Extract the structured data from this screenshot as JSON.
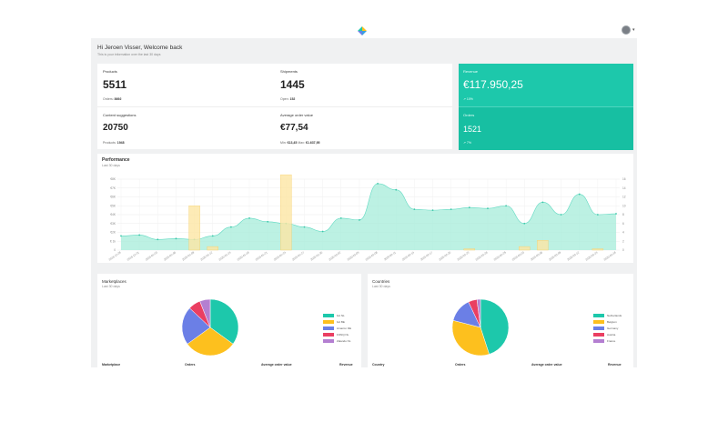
{
  "header": {
    "logo_icon": "app-logo-icon",
    "avatar_icon": "user-avatar-icon"
  },
  "greeting": {
    "title": "Hi Jeroen Visser, Welcome back",
    "subtitle": "This is your information over the last 30 days"
  },
  "stats": {
    "products": {
      "label": "Products",
      "value": "5511",
      "sub_label": "Orders:",
      "sub_value": "8692"
    },
    "shipments": {
      "label": "Shipments",
      "value": "1445",
      "sub_label": "Open:",
      "sub_value": "152"
    },
    "content": {
      "label": "Content suggestions",
      "value": "20750",
      "sub_label": "Products:",
      "sub_value": "1948"
    },
    "aov": {
      "label": "Average order value",
      "value": "€77,54",
      "sub_min_label": "Min:",
      "sub_min_value": "€13,45",
      "sub_max_label": "Max:",
      "sub_max_value": "€1.637,95"
    }
  },
  "revenue": {
    "label": "Revenue",
    "value": "€117.950,25",
    "change": "↗ 10%"
  },
  "orders": {
    "label": "Orders",
    "value": "1521",
    "change": "↗ 7%"
  },
  "performance": {
    "title": "Performance",
    "subtitle": "Last 30 days",
    "chart_data": {
      "type": "area",
      "left_axis_ticks": [
        "0",
        "€ 1k",
        "€2K",
        "€3K",
        "€4K",
        "€5K",
        "€6K",
        "€7K",
        "€8K"
      ],
      "right_axis_ticks": [
        "0",
        "2",
        "4",
        "6",
        "8",
        "10",
        "12",
        "14",
        "16"
      ],
      "x": [
        "2019-12-28",
        "2019-12-31",
        "2020-01-03",
        "2020-01-06",
        "2020-01-09",
        "2020-01-12",
        "2020-01-15",
        "2020-01-18",
        "2020-01-21",
        "2020-01-24",
        "2020-01-27",
        "2020-01-30",
        "2020-02-02",
        "2020-02-05",
        "2020-02-08",
        "2020-02-11",
        "2020-02-14",
        "2020-02-17",
        "2020-02-20",
        "2020-02-23",
        "2020-02-26",
        "2020-02-29",
        "2020-03-03",
        "2020-03-06",
        "2020-03-09",
        "2020-03-12",
        "2020-03-15",
        "2020-03-18"
      ],
      "series": [
        {
          "axis": "left",
          "color": "#a6ecd9",
          "values": [
            1.6,
            1.7,
            1.2,
            1.3,
            1.2,
            1.6,
            2.6,
            3.6,
            3.2,
            3.0,
            2.6,
            2.1,
            3.6,
            3.4,
            7.5,
            6.8,
            4.6,
            4.5,
            4.6,
            4.8,
            4.7,
            5.0,
            3.0,
            5.4,
            4.0,
            6.3,
            4.0,
            4.1
          ]
        },
        {
          "axis": "right",
          "color": "#fde6a4",
          "values": [
            0,
            0,
            0,
            0,
            10,
            0.8,
            0,
            0,
            0,
            17,
            0,
            0,
            0,
            0,
            0,
            0,
            0,
            0,
            0,
            0.3,
            0,
            0,
            0.8,
            2.2,
            0,
            0,
            0.3,
            0
          ]
        }
      ]
    }
  },
  "marketplaces": {
    "title": "Marketplaces",
    "subtitle": "Last 30 days",
    "columns": [
      "Marketplace",
      "Orders",
      "Average order value",
      "Revenue"
    ],
    "chart_data": {
      "type": "pie",
      "labels": [
        "bol NL",
        "bol BE",
        "Amazon DE",
        "FONQ NL",
        "Zalando NL"
      ],
      "values": [
        35,
        30,
        22,
        7,
        6
      ],
      "colors": [
        "#1dc8ab",
        "#fdc01e",
        "#6b7fe6",
        "#ea3f62",
        "#b47fd1"
      ]
    }
  },
  "countries": {
    "title": "Countries",
    "subtitle": "Last 30 days",
    "columns": [
      "Country",
      "Orders",
      "Average order value",
      "Revenue"
    ],
    "chart_data": {
      "type": "pie",
      "labels": [
        "Netherlands",
        "Belgium",
        "Germany",
        "Austria",
        "France"
      ],
      "values": [
        45,
        34,
        14,
        5,
        2
      ],
      "colors": [
        "#1dc8ab",
        "#fdc01e",
        "#6b7fe6",
        "#ea3f62",
        "#b47fd1"
      ]
    }
  }
}
